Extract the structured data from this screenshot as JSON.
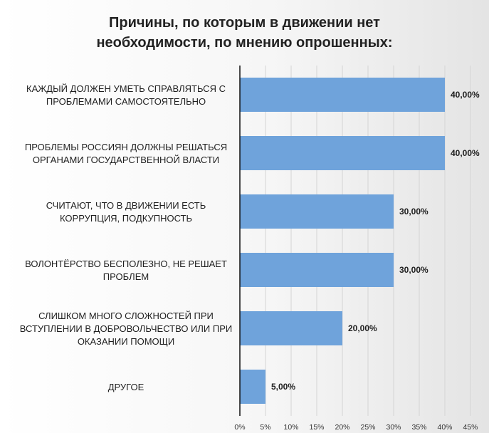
{
  "chart_data": {
    "type": "bar",
    "orientation": "horizontal",
    "title": [
      "Причины, по которым в движении нет",
      "необходимости, по мнению опрошенных:"
    ],
    "categories": [
      [
        "КАЖДЫЙ ДОЛЖЕН УМЕТЬ СПРАВЛЯТЬСЯ С",
        "ПРОБЛЕМАМИ САМОСТОЯТЕЛЬНО"
      ],
      [
        "ПРОБЛЕМЫ РОССИЯН ДОЛЖНЫ РЕШАТЬСЯ",
        "ОРГАНАМИ  ГОСУДАРСТВЕННОЙ ВЛАСТИ"
      ],
      [
        "СЧИТАЮТ, ЧТО В ДВИЖЕНИИ ЕСТЬ",
        "КОРРУПЦИЯ, ПОДКУПНОСТЬ"
      ],
      [
        "ВОЛОНТЁРСТВО БЕСПОЛЕЗНО, НЕ РЕШАЕТ",
        "ПРОБЛЕМ"
      ],
      [
        "СЛИШКОМ МНОГО СЛОЖНОСТЕЙ ПРИ",
        "ВСТУПЛЕНИИ В ДОБРОВОЛЬЧЕСТВО ИЛИ ПРИ",
        "ОКАЗАНИИ ПОМОЩИ"
      ],
      [
        "ДРУГОЕ"
      ]
    ],
    "values": [
      40,
      40,
      30,
      30,
      20,
      5
    ],
    "data_labels": [
      "40,00%",
      "40,00%",
      "30,00%",
      "30,00%",
      "20,00%",
      "5,00%"
    ],
    "xlim": [
      0,
      45
    ],
    "x_ticks": [
      0,
      5,
      10,
      15,
      20,
      25,
      30,
      35,
      40,
      45
    ],
    "x_tick_labels": [
      "0%",
      "5%",
      "10%",
      "15%",
      "20%",
      "25%",
      "30%",
      "35%",
      "40%",
      "45%"
    ],
    "grid": "vertical",
    "legend": "none",
    "bar_color": "#6fa3db",
    "grid_color": "#d4d4d4",
    "axis_color": "#111111"
  }
}
